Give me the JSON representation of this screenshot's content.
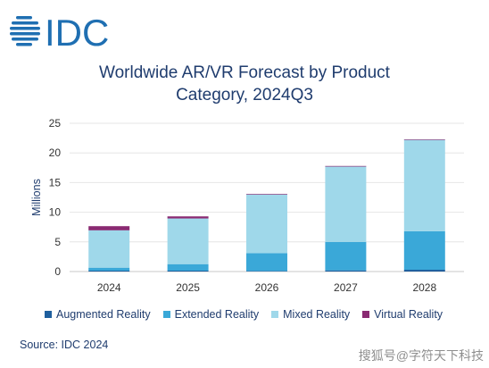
{
  "brand": {
    "logo_text": "IDC",
    "color": "#1f6fb2"
  },
  "chart_data": {
    "type": "bar",
    "stacked": true,
    "title_lines": [
      "Worldwide AR/VR Forecast by Product",
      "Category, 2024Q3"
    ],
    "xlabel": "",
    "ylabel": "Millions",
    "ylim": [
      0,
      25
    ],
    "yticks": [
      0,
      5,
      10,
      15,
      20,
      25
    ],
    "grid": true,
    "legend_position": "bottom",
    "categories": [
      "2024",
      "2025",
      "2026",
      "2027",
      "2028"
    ],
    "series": [
      {
        "name": "Augmented Reality",
        "color": "#1f5f9e",
        "values": [
          0.15,
          0.15,
          0.1,
          0.2,
          0.3
        ]
      },
      {
        "name": "Extended Reality",
        "color": "#3aa8d8",
        "values": [
          0.5,
          1.1,
          3.0,
          4.8,
          6.5
        ]
      },
      {
        "name": "Mixed Reality",
        "color": "#9fd8ea",
        "values": [
          6.3,
          7.7,
          9.9,
          12.7,
          15.4
        ]
      },
      {
        "name": "Virtual Reality",
        "color": "#8a2a72",
        "values": [
          0.7,
          0.35,
          0.1,
          0.1,
          0.1
        ]
      }
    ]
  },
  "source": "Source: IDC 2024",
  "watermark": "搜狐号@字符天下科技"
}
